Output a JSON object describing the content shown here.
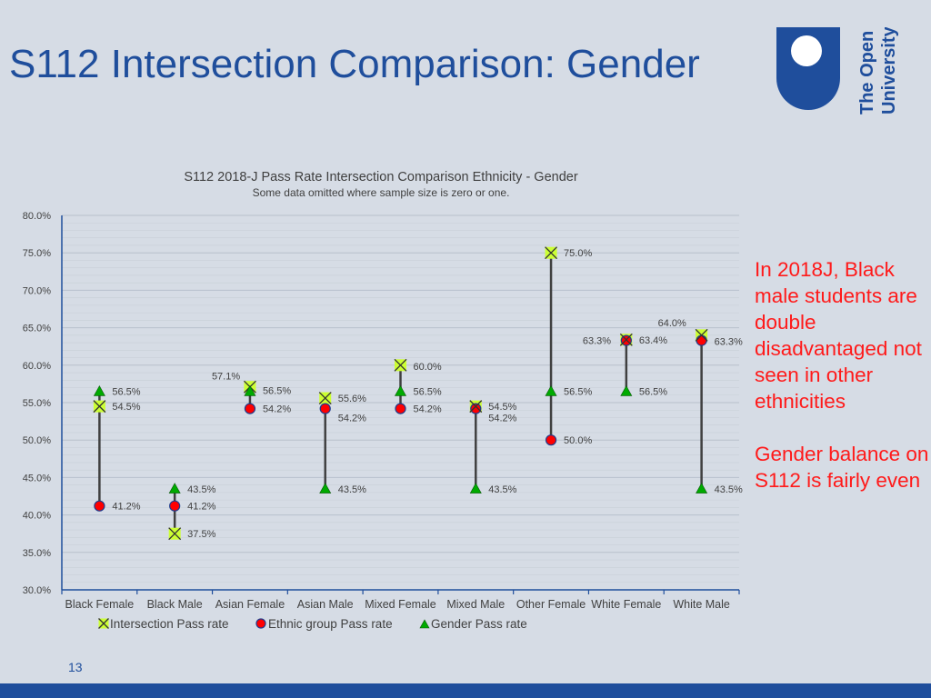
{
  "slide": {
    "title": "S112 Intersection Comparison: Gender",
    "page_number": "13",
    "notes": [
      "In 2018J, Black male students are double disadvantaged not seen in other ethnicities",
      "Gender balance on S112 is fairly even"
    ],
    "logo": {
      "text_line1": "The Open",
      "text_line2": "University",
      "color": "#1f4e9c"
    },
    "accent_color": "#1f4e9c",
    "note_color": "#ff1a1a"
  },
  "chart_data": {
    "type": "scatter",
    "title": "S112 2018-J Pass Rate Intersection Comparison Ethnicity - Gender",
    "subtitle": "Some data omitted where sample size is zero or one.",
    "categories": [
      "Black Female",
      "Black Male",
      "Asian Female",
      "Asian Male",
      "Mixed Female",
      "Mixed Male",
      "Other Female",
      "White Female",
      "White Male"
    ],
    "ylim": [
      30,
      80
    ],
    "yticks": [
      30,
      35,
      40,
      45,
      50,
      55,
      60,
      65,
      70,
      75,
      80
    ],
    "ytick_labels": [
      "30.0%",
      "35.0%",
      "40.0%",
      "45.0%",
      "50.0%",
      "55.0%",
      "60.0%",
      "65.0%",
      "70.0%",
      "75.0%",
      "80.0%"
    ],
    "grid": true,
    "legend_position": "bottom",
    "series": [
      {
        "name": "Intersection Pass rate",
        "marker": "x",
        "color": "#ccff33",
        "values": [
          54.5,
          37.5,
          57.1,
          55.6,
          60.0,
          54.5,
          75.0,
          63.4,
          64.0
        ],
        "labels": [
          "54.5%",
          "37.5%",
          "57.1%",
          "55.6%",
          "60.0%",
          "54.5%",
          "75.0%",
          "63.4%",
          "64.0%"
        ]
      },
      {
        "name": "Ethnic group Pass rate",
        "marker": "circle",
        "color": "#ff0000",
        "values": [
          41.2,
          41.2,
          54.2,
          54.2,
          54.2,
          54.2,
          50.0,
          63.3,
          63.3
        ],
        "labels": [
          "41.2%",
          "41.2%",
          "54.2%",
          "54.2%",
          "54.2%",
          "54.2%",
          "50.0%",
          "63.3%",
          "63.3%"
        ]
      },
      {
        "name": "Gender Pass rate",
        "marker": "triangle",
        "color": "#00aa00",
        "values": [
          56.5,
          43.5,
          56.5,
          43.5,
          56.5,
          43.5,
          56.5,
          56.5,
          43.5
        ],
        "labels": [
          "56.5%",
          "43.5%",
          "56.5%",
          "43.5%",
          "56.5%",
          "43.5%",
          "56.5%",
          "56.5%",
          "43.5%"
        ]
      }
    ]
  }
}
